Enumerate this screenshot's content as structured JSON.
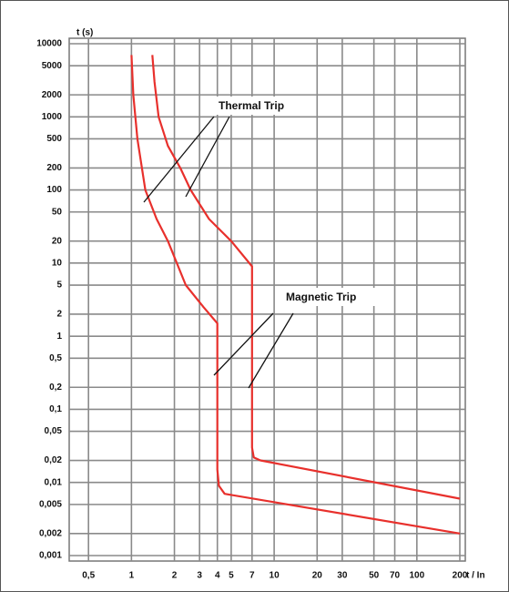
{
  "chart_data": {
    "type": "line",
    "xscale": "log",
    "yscale": "log",
    "grid": true,
    "ylabel": "t (s)",
    "xlabel": "t / In",
    "annotations": [
      "Thermal Trip",
      "Magnetic Trip"
    ],
    "xlim": [
      0.4,
      200
    ],
    "ylim": [
      0.001,
      10000
    ],
    "xticks": [
      {
        "value": 0.5,
        "label": "0,5"
      },
      1,
      2,
      3,
      4,
      5,
      7,
      10,
      20,
      30,
      50,
      70,
      100,
      200
    ],
    "yticks": [
      10000,
      5000,
      2000,
      1000,
      500,
      200,
      100,
      50,
      20,
      10,
      5,
      2,
      1,
      {
        "value": 0.5,
        "label": "0,5"
      },
      {
        "value": 0.2,
        "label": "0,2"
      },
      {
        "value": 0.1,
        "label": "0,1"
      },
      {
        "value": 0.05,
        "label": "0,05"
      },
      {
        "value": 0.02,
        "label": "0,02"
      },
      {
        "value": 0.01,
        "label": "0,01"
      },
      {
        "value": 0.005,
        "label": "0,005"
      },
      {
        "value": 0.002,
        "label": "0,002"
      },
      {
        "value": 0.001,
        "label": "0,001"
      }
    ],
    "series": [
      {
        "color": "#e8302c",
        "x": [
          1,
          1.03,
          1.1,
          1.25,
          1.5,
          1.8,
          2.4,
          3.2,
          4,
          4,
          4.1,
          4.5,
          200
        ],
        "values": [
          7000,
          2000,
          500,
          100,
          40,
          20,
          5,
          2.5,
          1.5,
          0.015,
          0.009,
          0.007,
          0.002
        ]
      },
      {
        "color": "#e8302c",
        "x": [
          1.4,
          1.45,
          1.55,
          1.8,
          2.2,
          2.6,
          3.5,
          5,
          7,
          7,
          7.2,
          8,
          200
        ],
        "values": [
          7000,
          3000,
          1000,
          400,
          200,
          100,
          40,
          20,
          9,
          0.03,
          0.022,
          0.02,
          0.006
        ]
      }
    ]
  }
}
